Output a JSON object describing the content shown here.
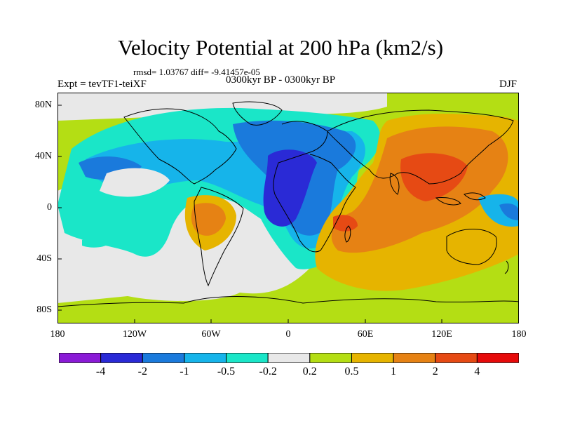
{
  "title": "Velocity Potential at 200 hPa (km2/s)",
  "stats": "rmsd= 1.03767 diff= -9.41457e-05",
  "experiment": "Expt = tevTF1-teiXF",
  "period": "0300kyr BP - 0300kyr BP",
  "season": "DJF",
  "y_axis_labels": [
    "80N",
    "40N",
    "0",
    "40S",
    "80S"
  ],
  "x_axis_labels": [
    "180",
    "120W",
    "60W",
    "0",
    "60E",
    "120E",
    "180"
  ],
  "colorbar": {
    "labels": [
      "-4",
      "-2",
      "-1",
      "-0.5",
      "-0.2",
      "0.2",
      "0.5",
      "1",
      "2",
      "4"
    ],
    "colors": [
      "#8a1ad6",
      "#2a2ad6",
      "#1a7adc",
      "#16b4ea",
      "#1ae6c8",
      "#e8e8e8",
      "#b4de14",
      "#e6b400",
      "#e68214",
      "#e64a14",
      "#e60a0a"
    ]
  }
}
